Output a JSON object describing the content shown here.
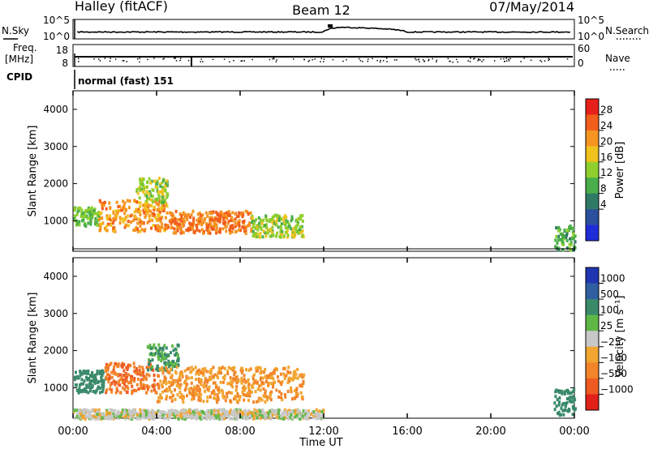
{
  "header": {
    "station": "Halley (fitACF)",
    "beam": "Beam 12",
    "date": "07/May/2014"
  },
  "strip_labels": {
    "nsky": "N.Sky",
    "nsearch": "N.Search",
    "freq_line1": "Freq.",
    "freq_line2": "[MHz]",
    "cpid": "CPID",
    "nave": "Nave",
    "cpid_value": "normal (fast) 151"
  },
  "strip_ticks": {
    "noise_left": [
      "10^5",
      "10^0"
    ],
    "noise_right": [
      "10^5",
      "10^0"
    ],
    "freq_left": [
      "18",
      "8"
    ],
    "nave_right": [
      "60",
      "0"
    ]
  },
  "colorbars": {
    "power": {
      "label": "Power [dB]",
      "ticks": [
        "28",
        "24",
        "20",
        "16",
        "12",
        "8",
        "4"
      ],
      "colors": [
        "#e8201a",
        "#f25e1b",
        "#f59420",
        "#f0c21e",
        "#8fcf2e",
        "#4aae4a",
        "#2f7a64",
        "#2c4f9e",
        "#1f2dd8"
      ]
    },
    "velocity": {
      "label": "Velocity [m s⁻¹]",
      "ticks": [
        "1000",
        "500",
        "100",
        "25",
        "−25",
        "−100",
        "−500",
        "−1000"
      ],
      "colors": [
        "#2036b0",
        "#2f5fa0",
        "#3a8a6a",
        "#5fb846",
        "#c8c8c8",
        "#f2a530",
        "#f2842a",
        "#ee5a22",
        "#e2201a"
      ]
    }
  },
  "chart_data": [
    {
      "type": "line",
      "panel": "noise",
      "series": [
        {
          "name": "N.Sky",
          "x": [
            "00:00",
            "04:00",
            "08:00",
            "12:00",
            "12:48",
            "16:00",
            "20:00",
            "24:00"
          ],
          "values": [
            60,
            60,
            60,
            60,
            1000,
            60,
            60,
            60
          ]
        },
        {
          "name": "N.Search",
          "x": [
            "00:00",
            "24:00"
          ],
          "values": [
            60,
            60
          ]
        }
      ],
      "yscale": "log",
      "ylim": [
        1,
        100000
      ]
    },
    {
      "type": "scatter",
      "panel": "frequency",
      "series": [
        {
          "name": "Freq.",
          "x": [
            "00:00",
            "24:00"
          ],
          "values": [
            12,
            12
          ]
        },
        {
          "name": "Nave",
          "x": [
            "00:00",
            "24:00"
          ],
          "values": [
            30,
            30
          ]
        }
      ],
      "ylim": [
        8,
        18
      ],
      "y2lim": [
        0,
        60
      ]
    },
    {
      "type": "heatmap",
      "panel": "power",
      "title": "Beam 12",
      "xlabel": "",
      "ylabel": "Slant Range [km]",
      "xlim": [
        "00:00",
        "24:00"
      ],
      "ylim": [
        180,
        4500
      ],
      "x_ticks": [
        "00:00",
        "04:00",
        "08:00",
        "12:00",
        "16:00",
        "20:00",
        "00:00"
      ],
      "y_ticks": [
        1000,
        2000,
        3000,
        4000
      ],
      "colorbar": "Power [dB]",
      "regions": [
        {
          "t_start": 0.0,
          "t_end": 1.2,
          "r_min": 900,
          "r_max": 1400,
          "value": 12
        },
        {
          "t_start": 1.2,
          "t_end": 4.5,
          "r_min": 750,
          "r_max": 1600,
          "value": 22
        },
        {
          "t_start": 3.0,
          "t_end": 4.5,
          "r_min": 1500,
          "r_max": 2200,
          "value": 14
        },
        {
          "t_start": 4.5,
          "t_end": 8.5,
          "r_min": 700,
          "r_max": 1300,
          "value": 24
        },
        {
          "t_start": 8.5,
          "t_end": 11.0,
          "r_min": 600,
          "r_max": 1200,
          "value": 14
        },
        {
          "t_start": 23.0,
          "t_end": 24.0,
          "r_min": 250,
          "r_max": 900,
          "value": 10
        }
      ]
    },
    {
      "type": "heatmap",
      "panel": "velocity",
      "xlabel": "Time UT",
      "ylabel": "Slant Range [km]",
      "xlim": [
        "00:00",
        "24:00"
      ],
      "ylim": [
        180,
        4500
      ],
      "x_ticks": [
        "00:00",
        "04:00",
        "08:00",
        "12:00",
        "16:00",
        "20:00",
        "00:00"
      ],
      "y_ticks": [
        1000,
        2000,
        3000,
        4000
      ],
      "colorbar": "Velocity [m s⁻¹]",
      "regions": [
        {
          "t_start": 0.0,
          "t_end": 1.5,
          "r_min": 900,
          "r_max": 1500,
          "value": 200
        },
        {
          "t_start": 1.5,
          "t_end": 4.0,
          "r_min": 900,
          "r_max": 1700,
          "value": -500
        },
        {
          "t_start": 3.5,
          "t_end": 5.0,
          "r_min": 1500,
          "r_max": 2200,
          "value": 100
        },
        {
          "t_start": 4.0,
          "t_end": 11.0,
          "r_min": 650,
          "r_max": 1600,
          "value": -100
        },
        {
          "t_start": 0.0,
          "t_end": 12.0,
          "r_min": 200,
          "r_max": 450,
          "value": 0
        },
        {
          "t_start": 23.0,
          "t_end": 24.0,
          "r_min": 300,
          "r_max": 1000,
          "value": 300
        }
      ]
    }
  ],
  "time_axis_label": "Time UT"
}
